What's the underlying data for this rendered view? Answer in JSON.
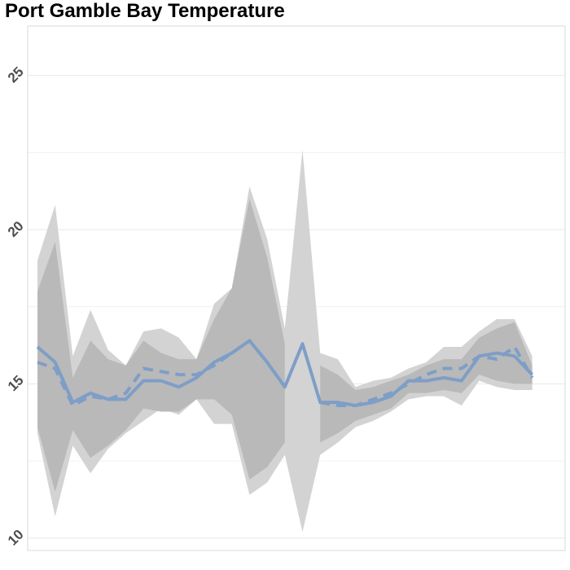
{
  "chart_data": {
    "type": "line",
    "title": "Port Gamble Bay Temperature",
    "xlabel": "",
    "ylabel": "",
    "ylim": [
      9.6,
      26.6
    ],
    "y_ticks": [
      10,
      15,
      20,
      25
    ],
    "y_tick_labels": [
      "10",
      "15",
      "20",
      "25"
    ],
    "grid": true,
    "x": [
      1,
      2,
      3,
      4,
      5,
      6,
      7,
      8,
      9,
      10,
      11,
      12,
      13,
      14,
      15,
      16,
      17,
      18,
      19,
      20,
      21,
      22,
      23,
      24,
      25,
      26,
      27,
      28,
      29,
      30
    ],
    "series": [
      {
        "style": "solid",
        "values": [
          16.2,
          15.7,
          14.4,
          14.7,
          14.5,
          14.5,
          15.1,
          15.1,
          14.9,
          15.2,
          15.7,
          16.0,
          16.4,
          15.7,
          14.9,
          16.3,
          14.4,
          14.4,
          14.3,
          14.4,
          14.6,
          15.1,
          15.1,
          15.2,
          15.1,
          15.9,
          16.0,
          15.9,
          15.3,
          null
        ]
      },
      {
        "style": "dashed",
        "values": [
          15.7,
          15.5,
          14.3,
          14.6,
          14.5,
          14.7,
          15.5,
          15.4,
          15.3,
          15.3,
          15.6,
          16.0,
          16.4,
          15.7,
          null,
          null,
          14.4,
          14.3,
          14.3,
          14.5,
          14.7,
          15.0,
          15.3,
          15.5,
          15.5,
          15.9,
          15.8,
          16.2,
          15.2,
          null
        ]
      }
    ],
    "bands": [
      {
        "shade": "outer",
        "lower": [
          13.4,
          10.7,
          13.0,
          12.1,
          12.9,
          13.4,
          13.8,
          14.2,
          14.0,
          14.5,
          13.7,
          13.7,
          11.4,
          11.8,
          12.7,
          10.2,
          12.7,
          13.1,
          13.6,
          13.8,
          14.1,
          14.5,
          14.6,
          14.6,
          14.3,
          15.1,
          14.9,
          14.8,
          14.8,
          null
        ],
        "upper": [
          19.0,
          20.8,
          15.9,
          17.4,
          16.1,
          15.6,
          16.7,
          16.8,
          16.5,
          15.8,
          17.6,
          18.1,
          21.4,
          19.7,
          16.8,
          22.6,
          16.0,
          15.8,
          14.9,
          15.1,
          15.2,
          15.5,
          15.7,
          16.2,
          16.2,
          16.7,
          17.1,
          17.1,
          15.9,
          null
        ]
      },
      {
        "shade": "inner",
        "lower": [
          13.6,
          11.5,
          13.5,
          12.6,
          13.0,
          13.5,
          14.2,
          14.1,
          14.1,
          14.5,
          14.5,
          14.0,
          11.9,
          12.3,
          13.1,
          null,
          13.1,
          13.4,
          13.8,
          14.0,
          14.2,
          14.7,
          14.7,
          14.8,
          14.7,
          15.3,
          15.1,
          15.0,
          15.0,
          null
        ],
        "upper": [
          18.0,
          19.6,
          15.2,
          16.4,
          15.8,
          15.6,
          16.4,
          16.0,
          15.8,
          15.8,
          17.1,
          18.1,
          21.0,
          19.1,
          16.3,
          null,
          15.6,
          15.3,
          14.8,
          14.9,
          15.1,
          15.3,
          15.6,
          15.8,
          15.8,
          16.5,
          16.8,
          17.0,
          15.6,
          null
        ]
      }
    ],
    "colors": {
      "line": "#7e9ec7",
      "outer_band": "#d3d3d3",
      "inner_band": "#b9b9b9",
      "grid": "#ebebeb",
      "axis_text": "#4d4d4d",
      "panel_border": "#d9d9d9"
    }
  }
}
